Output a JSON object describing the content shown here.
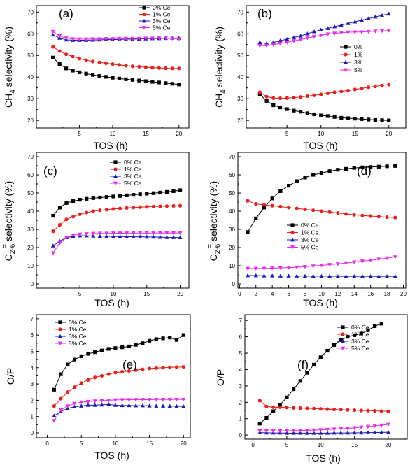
{
  "chart_data": [
    {
      "panel_label": "(a)",
      "type": "line",
      "xlabel": "TOS (h)",
      "ylabel": {
        "main": "CH",
        "sub": "4",
        "rest": " selectivity (%)"
      },
      "xticks": [
        5,
        10,
        15,
        20
      ],
      "yticks": [
        20,
        30,
        40,
        50,
        60,
        70
      ],
      "xlim": [
        -1.5,
        21.5
      ],
      "ylim": [
        16.5,
        73
      ],
      "grid": false,
      "legend_position": "top-right",
      "x": [
        1,
        2,
        3,
        4,
        5,
        6,
        7,
        8,
        9,
        10,
        11,
        12,
        13,
        14,
        15,
        16,
        17,
        18,
        19,
        20
      ],
      "series": [
        {
          "name": "0% Ce",
          "color": "#000000",
          "marker": "square",
          "values": [
            49,
            46,
            44,
            43,
            42.2,
            41.6,
            41,
            40.5,
            40.1,
            39.7,
            39.3,
            39,
            38.7,
            38.4,
            38.1,
            37.8,
            37.5,
            37.2,
            36.9,
            36.6
          ]
        },
        {
          "name": "1% Ce",
          "color": "#e8211d",
          "marker": "circle",
          "values": [
            54,
            52,
            50.5,
            49.5,
            48.5,
            47.8,
            47.2,
            46.8,
            46.4,
            46,
            45.6,
            45.3,
            45,
            44.8,
            44.6,
            44.4,
            44.2,
            44.1,
            44,
            44
          ]
        },
        {
          "name": "3% Ce",
          "color": "#1c1cb4",
          "marker": "triangle-up",
          "values": [
            59.5,
            58,
            57.2,
            57,
            57,
            57,
            57.1,
            57.2,
            57.3,
            57.3,
            57.4,
            57.5,
            57.5,
            57.6,
            57.7,
            57.8,
            57.8,
            57.9,
            58,
            58
          ]
        },
        {
          "name": "5% Ce",
          "color": "#e62ee6",
          "marker": "triangle-down",
          "values": [
            61,
            59,
            58,
            57.6,
            57.5,
            57.5,
            57.6,
            57.6,
            57.7,
            57.7,
            57.8,
            57.8,
            57.8,
            57.8,
            57.9,
            57.9,
            58,
            58,
            57.8,
            57.6
          ]
        }
      ]
    },
    {
      "panel_label": "(b)",
      "type": "line",
      "xlabel": "TOS (h)",
      "ylabel": {
        "main": "CH",
        "sub": "4",
        "rest": " selectivity (%)"
      },
      "xticks": [
        5,
        10,
        15,
        20
      ],
      "yticks": [
        20,
        30,
        40,
        50,
        60,
        70
      ],
      "xlim": [
        -1,
        22.5
      ],
      "ylim": [
        16.5,
        73
      ],
      "grid": false,
      "legend_position": "right",
      "x": [
        1,
        2,
        3,
        4,
        5,
        6,
        7,
        8,
        9,
        10,
        11,
        12,
        13,
        14,
        15,
        16,
        17,
        18,
        19,
        20
      ],
      "series": [
        {
          "name": "0%",
          "color": "#000000",
          "marker": "square",
          "values": [
            32,
            29,
            27,
            26,
            25.2,
            24.5,
            24,
            23.3,
            22.8,
            22.3,
            22,
            21.6,
            21.2,
            21,
            20.8,
            20.6,
            20.4,
            20.2,
            20.1,
            20
          ]
        },
        {
          "name": "1%",
          "color": "#e8211d",
          "marker": "circle",
          "values": [
            33,
            31,
            30.3,
            30.2,
            30.3,
            30.5,
            30.8,
            31.2,
            31.6,
            32,
            32.5,
            33,
            33.4,
            33.8,
            34.3,
            34.8,
            35.3,
            35.7,
            36.1,
            36.5
          ]
        },
        {
          "name": "3%",
          "color": "#1c1cb4",
          "marker": "triangle-up",
          "values": [
            56,
            55.5,
            56,
            56.8,
            57.5,
            58.3,
            59,
            60,
            61,
            61.8,
            62.5,
            63.3,
            64,
            64.8,
            65.5,
            66.3,
            67,
            67.8,
            68.5,
            69.2
          ]
        },
        {
          "name": "5%",
          "color": "#e62ee6",
          "marker": "triangle-down",
          "values": [
            54.5,
            54.5,
            55,
            55.5,
            56,
            56.7,
            57.3,
            58,
            58.7,
            59.3,
            59.8,
            60.2,
            60.5,
            60.7,
            60.8,
            60.8,
            61,
            61.2,
            61.3,
            61.5
          ]
        }
      ]
    },
    {
      "panel_label": "(c)",
      "type": "line",
      "xlabel": "TOS (h)",
      "ylabel": {
        "main": "C",
        "sub": "2-6",
        "sup": "=",
        "rest": " selectivity (%)"
      },
      "xticks": [
        5,
        10,
        15,
        20
      ],
      "yticks": [
        0,
        10,
        20,
        30,
        40,
        50,
        60,
        70
      ],
      "xlim": [
        -1.5,
        21.3
      ],
      "ylim": [
        -2.3,
        72.3
      ],
      "grid": false,
      "legend_position": "top-right",
      "x": [
        1,
        2,
        3,
        4,
        5,
        6,
        7,
        8,
        9,
        10,
        11,
        12,
        13,
        14,
        15,
        16,
        17,
        18,
        19,
        20
      ],
      "series": [
        {
          "name": "0% Ce",
          "color": "#000000",
          "marker": "square",
          "values": [
            37.5,
            42,
            44.5,
            45.5,
            46.3,
            46.8,
            47.2,
            47.5,
            47.8,
            48.1,
            48.4,
            48.7,
            49,
            49.3,
            49.6,
            49.9,
            50.2,
            50.6,
            51,
            51.5
          ]
        },
        {
          "name": "1% Ce",
          "color": "#e8211d",
          "marker": "circle",
          "values": [
            29,
            32.5,
            35.5,
            37,
            38.3,
            39.2,
            40,
            40.5,
            40.8,
            41.2,
            41.5,
            41.8,
            42,
            42.2,
            42.4,
            42.6,
            42.7,
            42.8,
            42.9,
            43
          ]
        },
        {
          "name": "3% Ce",
          "color": "#1c1cb4",
          "marker": "triangle-up",
          "values": [
            21,
            23.5,
            25.5,
            26.2,
            26.5,
            26.5,
            26.4,
            26.3,
            26.2,
            26.1,
            26,
            26,
            25.9,
            25.9,
            25.8,
            25.8,
            25.7,
            25.6,
            25.6,
            25.5
          ]
        },
        {
          "name": "5% Ce",
          "color": "#e62ee6",
          "marker": "triangle-down",
          "values": [
            17,
            22.5,
            25.5,
            26.8,
            27.3,
            27.5,
            27.7,
            27.8,
            27.8,
            27.9,
            27.9,
            27.9,
            28,
            28,
            28,
            28,
            28,
            28,
            28,
            28
          ]
        }
      ]
    },
    {
      "panel_label": "(d)",
      "type": "line",
      "xlabel": "TOS (h)",
      "ylabel": {
        "main": "C",
        "sub": "2-6",
        "sup": "=",
        "rest": " selectivity (%)"
      },
      "xticks": [
        0,
        2,
        4,
        6,
        8,
        10,
        12,
        14,
        16,
        18,
        20
      ],
      "yticks": [
        0,
        10,
        20,
        30,
        40,
        50,
        60,
        70
      ],
      "xlim": [
        -0.2,
        20.3
      ],
      "ylim": [
        -2.3,
        72.3
      ],
      "grid": false,
      "legend_position": "center",
      "x": [
        1,
        2,
        3,
        4,
        5,
        6,
        7,
        8,
        9,
        10,
        11,
        12,
        13,
        14,
        15,
        16,
        17,
        18,
        19
      ],
      "series": [
        {
          "name": "0% Ce",
          "color": "#000000",
          "marker": "square",
          "values": [
            28.5,
            36,
            42,
            47,
            51,
            54,
            56.5,
            58.5,
            60,
            61,
            62,
            62.8,
            63.3,
            63.8,
            64.1,
            64.3,
            64.5,
            64.7,
            64.9
          ]
        },
        {
          "name": "1% Ce",
          "color": "#e8211d",
          "marker": "circle",
          "values": [
            45.7,
            44,
            43.5,
            43,
            42.5,
            42,
            41.5,
            41,
            40.5,
            40,
            39.5,
            39,
            38.5,
            38,
            37.6,
            37.3,
            37,
            36.7,
            36.5
          ]
        },
        {
          "name": "3% Ce",
          "color": "#1c1cb4",
          "marker": "triangle-up",
          "values": [
            4.6,
            4.6,
            4.5,
            4.5,
            4.4,
            4.4,
            4.4,
            4.3,
            4.3,
            4.3,
            4.3,
            4.2,
            4.2,
            4.2,
            4.2,
            4.2,
            4.2,
            4.2,
            4.2
          ]
        },
        {
          "name": "5% Ce",
          "color": "#e62ee6",
          "marker": "triangle-down",
          "values": [
            8.5,
            8.5,
            8.5,
            8.7,
            8.8,
            9,
            9.2,
            9.5,
            9.8,
            10.2,
            10.6,
            11,
            11.5,
            12,
            12.5,
            13,
            13.6,
            14.2,
            14.8
          ]
        }
      ]
    },
    {
      "panel_label": "(e)",
      "type": "line",
      "xlabel": "TOS (h)",
      "ylabel": {
        "main": "O/P"
      },
      "xticks": [
        0,
        5,
        10,
        15,
        20
      ],
      "yticks": [
        0,
        1,
        2,
        3,
        4,
        5,
        6,
        7
      ],
      "xlim": [
        -1.6,
        21
      ],
      "ylim": [
        -0.3,
        7.25
      ],
      "grid": false,
      "legend_position": "top-left",
      "x": [
        1,
        2,
        3,
        4,
        5,
        6,
        7,
        8,
        9,
        10,
        11,
        12,
        13,
        14,
        15,
        16,
        17,
        18,
        19,
        20
      ],
      "series": [
        {
          "name": "0% Ce",
          "color": "#000000",
          "marker": "square",
          "values": [
            2.65,
            3.6,
            4.2,
            4.5,
            4.7,
            4.85,
            4.95,
            5.05,
            5.15,
            5.2,
            5.25,
            5.3,
            5.4,
            5.5,
            5.65,
            5.75,
            5.8,
            5.85,
            5.7,
            6
          ]
        },
        {
          "name": "1% Ce",
          "color": "#e8211d",
          "marker": "circle",
          "values": [
            1.65,
            2.1,
            2.5,
            2.8,
            3.05,
            3.25,
            3.4,
            3.5,
            3.6,
            3.7,
            3.75,
            3.8,
            3.85,
            3.9,
            3.95,
            3.98,
            4,
            4.02,
            4.03,
            4.05
          ]
        },
        {
          "name": "3% Ce",
          "color": "#1c1cb4",
          "marker": "triangle-up",
          "values": [
            1.05,
            1.3,
            1.5,
            1.6,
            1.65,
            1.7,
            1.7,
            1.72,
            1.75,
            1.7,
            1.68,
            1.68,
            1.67,
            1.67,
            1.66,
            1.65,
            1.65,
            1.64,
            1.63,
            1.62
          ]
        },
        {
          "name": "5% Ce",
          "color": "#e62ee6",
          "marker": "triangle-down",
          "values": [
            0.75,
            1.4,
            1.65,
            1.8,
            1.88,
            1.92,
            1.95,
            1.98,
            2,
            2.02,
            2.03,
            2.03,
            2.04,
            2.04,
            2.04,
            2.05,
            2.05,
            2.05,
            2.05,
            2.05
          ]
        }
      ]
    },
    {
      "panel_label": "(f)",
      "type": "line",
      "xlabel": "TOS (h)",
      "ylabel": {
        "main": "O/P"
      },
      "xticks": [
        0,
        5,
        10,
        15,
        20
      ],
      "yticks": [
        0,
        1,
        2,
        3,
        4,
        5,
        6,
        7
      ],
      "xlim": [
        -1.2,
        22.8
      ],
      "ylim": [
        -0.25,
        7.35
      ],
      "grid": false,
      "legend_position": "top-right",
      "x": [
        1,
        2,
        3,
        4,
        5,
        6,
        7,
        8,
        9,
        10,
        11,
        12,
        13,
        14,
        15,
        16,
        17,
        18,
        19,
        20
      ],
      "series": [
        {
          "name": "0% Ce",
          "color": "#000000",
          "marker": "square",
          "x": [
            1,
            2,
            3,
            4,
            5,
            6,
            7,
            8,
            9,
            10,
            11,
            12,
            13,
            14,
            15,
            16,
            17,
            18,
            19
          ],
          "values": [
            0.7,
            1.05,
            1.45,
            1.85,
            2.3,
            2.8,
            3.3,
            3.8,
            4.3,
            4.75,
            5.15,
            5.5,
            5.8,
            6,
            6.1,
            6.2,
            6.4,
            6.65,
            6.8
          ]
        },
        {
          "name": "1% Ce",
          "color": "#e8211d",
          "marker": "circle",
          "values": [
            2.1,
            1.75,
            1.7,
            1.7,
            1.68,
            1.66,
            1.65,
            1.63,
            1.62,
            1.6,
            1.58,
            1.56,
            1.55,
            1.53,
            1.52,
            1.5,
            1.49,
            1.48,
            1.46,
            1.45
          ]
        },
        {
          "name": "3% Ce",
          "color": "#1c1cb4",
          "marker": "triangle-up",
          "values": [
            0.15,
            0.14,
            0.13,
            0.13,
            0.12,
            0.12,
            0.12,
            0.12,
            0.12,
            0.12,
            0.12,
            0.13,
            0.13,
            0.13,
            0.14,
            0.14,
            0.15,
            0.15,
            0.16,
            0.17
          ]
        },
        {
          "name": "5% Ce",
          "color": "#e62ee6",
          "marker": "triangle-down",
          "values": [
            0.25,
            0.25,
            0.25,
            0.25,
            0.26,
            0.27,
            0.28,
            0.29,
            0.3,
            0.32,
            0.34,
            0.36,
            0.38,
            0.41,
            0.44,
            0.48,
            0.52,
            0.56,
            0.6,
            0.65
          ]
        }
      ]
    }
  ]
}
